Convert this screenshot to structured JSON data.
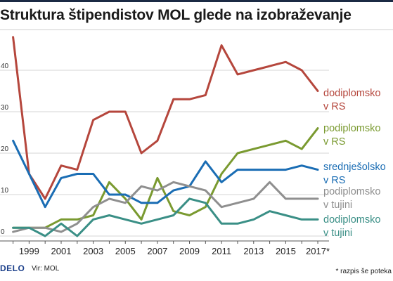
{
  "title": "Struktura štipendistov MOL glede na izobraževanje",
  "footer": {
    "logo": "DELO",
    "source": "Vir: MOL",
    "footnote": "* razpis še poteka"
  },
  "chart_data": {
    "type": "line",
    "title": "Struktura štipendistov MOL glede na izobraževanje",
    "x": [
      1998,
      1999,
      2000,
      2001,
      2002,
      2003,
      2004,
      2005,
      2006,
      2007,
      2008,
      2009,
      2010,
      2011,
      2012,
      2013,
      2014,
      2015,
      2016,
      2017
    ],
    "x_tick_labels": [
      "1999",
      "2001",
      "2003",
      "2005",
      "2007",
      "2009",
      "2011",
      "2013",
      "2015",
      "2017*"
    ],
    "x_tick_values": [
      1999,
      2001,
      2003,
      2005,
      2007,
      2009,
      2011,
      2013,
      2015,
      2017
    ],
    "y_ticks": [
      0,
      10,
      20,
      30,
      40
    ],
    "ylim": [
      0,
      50
    ],
    "xlim": [
      1997.8,
      2017.7
    ],
    "grid": "horizontal",
    "series": [
      {
        "name": "dodiplomsko v RS",
        "label_lines": [
          "dodiplomsko",
          "v RS"
        ],
        "color": "#b5463c",
        "values": [
          48,
          15,
          9,
          17,
          16,
          28,
          30,
          30,
          20,
          23,
          33,
          33,
          34,
          46,
          39,
          40,
          41,
          42,
          40,
          35
        ]
      },
      {
        "name": "podiplomsko v RS",
        "label_lines": [
          "podiplomsko",
          "v RS"
        ],
        "color": "#7a9a30",
        "values": [
          2,
          2,
          2,
          4,
          4,
          5,
          13,
          9,
          4,
          14,
          6,
          5,
          7,
          15,
          20,
          21,
          22,
          23,
          21,
          26
        ]
      },
      {
        "name": "srednješolsko v RS",
        "label_lines": [
          "srednješolsko",
          "v RS"
        ],
        "color": "#1a6db4",
        "values": [
          23,
          15,
          7,
          14,
          15,
          15,
          10,
          10,
          8,
          8,
          11,
          12,
          18,
          13,
          16,
          16,
          16,
          16,
          17,
          16
        ]
      },
      {
        "name": "podiplomsko v tujini",
        "label_lines": [
          "podiplomsko",
          "v tujini"
        ],
        "color": "#8f8f8f",
        "values": [
          1,
          2,
          2,
          1,
          3,
          7,
          9,
          8,
          12,
          11,
          13,
          12,
          11,
          7,
          8,
          9,
          13,
          9,
          9,
          9
        ]
      },
      {
        "name": "dodiplomsko v tujini",
        "label_lines": [
          "dodiplomsko",
          "v tujini"
        ],
        "color": "#3a8f86",
        "values": [
          2,
          2,
          0,
          3,
          0,
          4,
          5,
          4,
          3,
          4,
          5,
          9,
          8,
          3,
          3,
          4,
          6,
          5,
          4,
          4
        ]
      }
    ]
  }
}
